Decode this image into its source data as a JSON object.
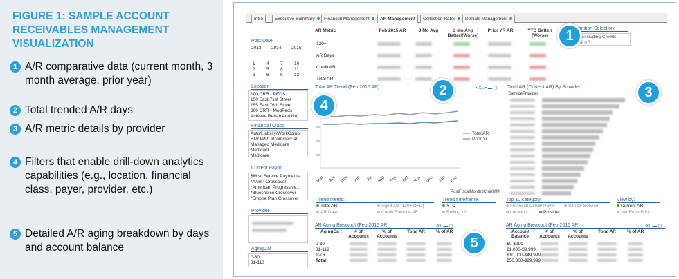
{
  "figure": {
    "title": "FIGURE 1: SAMPLE ACCOUNT RECEIVABLES MANAGEMENT VISUALIZATION",
    "items": [
      {
        "num": "1",
        "text": "A/R comparative data (current month, 3 month average, prior year)"
      },
      {
        "num": "2",
        "text": "Total trended A/R days"
      },
      {
        "num": "3",
        "text": "A/R metric details by provider"
      },
      {
        "num": "4",
        "text": "Filters that enable drill-down analytics capabilities (e.g., location, financial class, payer, provider, etc.)"
      },
      {
        "num": "5",
        "text": "Detailed A/R aging breakdown by days and account balance"
      }
    ]
  },
  "app": {
    "tabs": [
      "Intro",
      "Executive Summary",
      "Financial Management",
      "AR Management",
      "Collection Rates",
      "Denials Management"
    ],
    "post_date": {
      "title": "Post Date",
      "years": [
        "2013",
        "2014",
        "2015"
      ],
      "months": [
        [
          "1",
          "4",
          "7",
          "10"
        ],
        [
          "2",
          "5",
          "8",
          "11"
        ],
        [
          "3",
          "6",
          "9",
          "12"
        ]
      ]
    },
    "location": {
      "title": "Location",
      "items": [
        "100 CRR - PEDS",
        "150 East 71st Street",
        "155 East 76th Street",
        "300 CRR - MedPeds",
        "Achieve Rehab And Nu..."
      ]
    },
    "financial_class": {
      "title": "Financial Class",
      "items": [
        "Auto/Liability/WorkComp",
        "HMO/PPO/Commercial",
        "Managed Medicare",
        "Medicaid",
        "Medicare"
      ]
    },
    "current_payor": {
      "title": "Current Payor",
      "items": [
        "$Misc Service Payments",
        "*AARP Crossover",
        "*American Progressive...",
        "*Blueshoice Crossover",
        "*Empire Plan Crossover"
      ]
    },
    "provider": {
      "title": "Provider"
    },
    "agingcat": {
      "title": "AgingCat",
      "items": [
        "0-30",
        "31-110"
      ]
    },
    "metrics": {
      "headers": [
        "AR Metric",
        "Feb 2015 AR",
        "3 Mo Avg",
        "3 Mo Avg Better/(Worse)",
        "Prior YR AR",
        "YTD Better/ (Worse)"
      ],
      "rows": [
        "120+",
        "AR Days",
        "Credit AR",
        "Total AR"
      ]
    },
    "definition": {
      "title": "Definition Selection:",
      "items": [
        "AR Excluding Credits",
        "Total AR"
      ]
    },
    "trend": {
      "title": "Total AR Trend (Feb 2015 AR)",
      "x_label": "PostFiscalMonth3CharMM",
      "months": [
        "Mar",
        "Apr",
        "May",
        "Jun",
        "Jul",
        "Aug",
        "Sep",
        "Oct",
        "Nov",
        "Dec",
        "Jan",
        "Feb"
      ],
      "series": [
        "Total AR",
        "Prior Yr"
      ]
    },
    "provider_chart": {
      "title": "Total AR (Current AR) By Provider",
      "axis_label": "ServiceProvider"
    },
    "trend_metric": {
      "title": "Trend metric:",
      "items": [
        "Total AR",
        "Aged AR (120+ DFD)",
        "AR Days",
        "Credit Balance AR"
      ]
    },
    "trend_timeframe": {
      "title": "Trend timeframe:",
      "items": [
        "YTD",
        "Rolling 12"
      ]
    },
    "top10": {
      "title": "Top 10 category:",
      "items": [
        "Financial Class",
        "Payor",
        "Site Of Service",
        "Location",
        "Provider"
      ]
    },
    "view_by": {
      "title": "View by:",
      "items": [
        "Current AR",
        "Var From Prior"
      ]
    },
    "aging1": {
      "title": "AR Aging Breakout (Feb 2015 AR)",
      "headers": [
        "AgingCa t",
        "# of Accounts",
        "% of Accounts",
        "Total AR",
        "% of AR"
      ],
      "rows": [
        "0-30",
        "31-119",
        "120+",
        "Total"
      ]
    },
    "aging2": {
      "title": "AR Aging Breakout (Feb 2015 AR)",
      "headers": [
        "Account Balance",
        "# of Accounts",
        "% of Accounts",
        "Total AR",
        "% of AR"
      ],
      "rows": [
        "$0-$999",
        "$1,000-$9,999",
        "$10,000-$49,999",
        "$50,000-$99,999"
      ]
    }
  },
  "callouts": [
    "1",
    "2",
    "3",
    "4",
    "5"
  ]
}
